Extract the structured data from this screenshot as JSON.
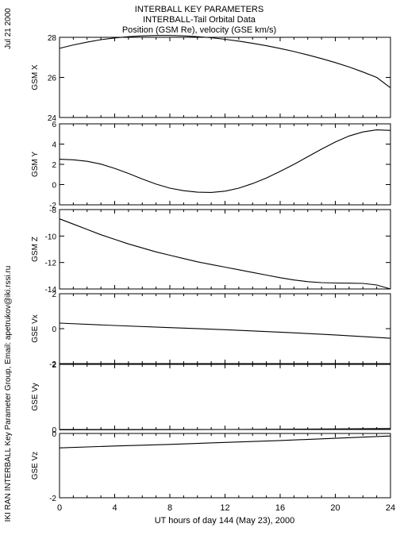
{
  "header": {
    "line1": "INTERBALL KEY PARAMETERS",
    "line2": "INTERBALL-Tail Orbital Data",
    "line3": "Position (GSM Re), velocity (GSE km/s)"
  },
  "side_date": "Jul 21 2000",
  "side_credit": "IKI RAN INTERBALL Key Parameter Group, Email: apetrukov@iki.rssi.ru",
  "x_axis": {
    "label": "UT hours of day 144 (May 23), 2000",
    "ticks": [
      0,
      4,
      8,
      12,
      16,
      20,
      24
    ],
    "tick_labels": [
      "0",
      "4",
      "8",
      "12",
      "16",
      "20",
      "24"
    ],
    "range": [
      0,
      24
    ]
  },
  "chart_data": [
    {
      "type": "line",
      "ylabel": "GSM X",
      "ylim": [
        24,
        28
      ],
      "yticks": [
        24,
        26,
        28
      ],
      "ytick_labels": [
        "24",
        "26",
        "28"
      ],
      "x": [
        0,
        1,
        2,
        3,
        4,
        5,
        6,
        7,
        8,
        9,
        10,
        11,
        12,
        13,
        14,
        15,
        16,
        17,
        18,
        19,
        20,
        21,
        22,
        23,
        24
      ],
      "values": [
        27.45,
        27.62,
        27.76,
        27.88,
        27.97,
        28.03,
        28.07,
        28.09,
        28.09,
        28.07,
        28.03,
        27.98,
        27.9,
        27.81,
        27.7,
        27.58,
        27.44,
        27.29,
        27.12,
        26.94,
        26.74,
        26.52,
        26.27,
        26.0,
        25.48
      ]
    },
    {
      "type": "line",
      "ylabel": "GSM Y",
      "ylim": [
        -2,
        6
      ],
      "yticks": [
        -2,
        0,
        2,
        4,
        6
      ],
      "ytick_labels": [
        "-2",
        "0",
        "2",
        "4",
        "6"
      ],
      "x": [
        0,
        1,
        2,
        3,
        4,
        5,
        6,
        7,
        8,
        9,
        10,
        11,
        12,
        13,
        14,
        15,
        16,
        17,
        18,
        19,
        20,
        21,
        22,
        23,
        24
      ],
      "values": [
        2.5,
        2.45,
        2.3,
        2.02,
        1.6,
        1.1,
        0.55,
        0.05,
        -0.35,
        -0.6,
        -0.75,
        -0.78,
        -0.65,
        -0.35,
        0.1,
        0.65,
        1.3,
        2.0,
        2.75,
        3.5,
        4.2,
        4.8,
        5.2,
        5.4,
        5.35
      ]
    },
    {
      "type": "line",
      "ylabel": "GSM Z",
      "ylim": [
        -14,
        -8
      ],
      "yticks": [
        -14,
        -12,
        -10,
        -8
      ],
      "ytick_labels": [
        "-14",
        "-12",
        "-10",
        "-8"
      ],
      "x": [
        0,
        1,
        2,
        3,
        4,
        5,
        6,
        7,
        8,
        9,
        10,
        11,
        12,
        13,
        14,
        15,
        16,
        17,
        18,
        19,
        20,
        21,
        22,
        23,
        24
      ],
      "values": [
        -8.7,
        -9.1,
        -9.5,
        -9.9,
        -10.25,
        -10.6,
        -10.9,
        -11.2,
        -11.45,
        -11.7,
        -11.95,
        -12.15,
        -12.35,
        -12.55,
        -12.75,
        -12.95,
        -13.15,
        -13.32,
        -13.45,
        -13.52,
        -13.55,
        -13.56,
        -13.58,
        -13.7,
        -14.0
      ]
    },
    {
      "type": "line",
      "ylabel": "GSE Vx",
      "ylim": [
        -2,
        2
      ],
      "yticks": [
        -2,
        0,
        2
      ],
      "ytick_labels": [
        "-2",
        "0",
        "2"
      ],
      "x": [
        0,
        4,
        8,
        12,
        16,
        20,
        24
      ],
      "values": [
        0.32,
        0.18,
        0.06,
        -0.06,
        -0.2,
        -0.36,
        -0.55
      ]
    },
    {
      "type": "line",
      "ylabel": "GSE Vy",
      "ylim": [
        0,
        2
      ],
      "yticks": [
        0,
        2
      ],
      "ytick_labels": [
        "0",
        "2"
      ],
      "x": [
        0,
        4,
        8,
        12,
        16,
        20,
        24
      ],
      "values": [
        -0.01,
        -0.008,
        -0.005,
        0.0,
        0.008,
        0.018,
        0.03
      ]
    },
    {
      "type": "line",
      "ylabel": "GSE Vz",
      "ylim": [
        -2,
        0
      ],
      "yticks": [
        -2,
        0
      ],
      "ytick_labels": [
        "-2",
        "0"
      ],
      "x": [
        0,
        4,
        8,
        12,
        16,
        20,
        24
      ],
      "values": [
        -0.45,
        -0.39,
        -0.34,
        -0.28,
        -0.22,
        -0.15,
        -0.08
      ]
    }
  ]
}
